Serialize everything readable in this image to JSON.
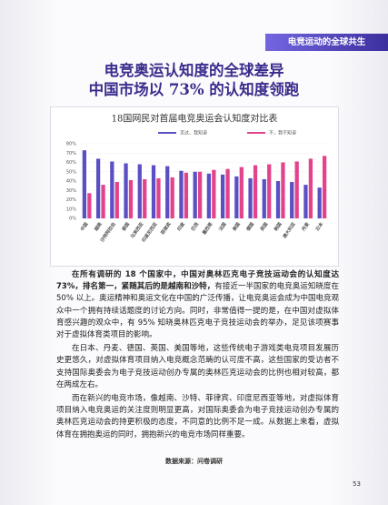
{
  "header_tab": "电竞运动的全球共生",
  "title": [
    "电竞奥运认知度的全球差异",
    "中国市场以 73% 的认知度领跑"
  ],
  "chart_data": {
    "type": "bar",
    "title": "18国网民对首届电竞奥运会认知度对比表",
    "categories": [
      "中国",
      "越南",
      "沙特阿拉伯",
      "泰国",
      "马来西亚",
      "印度尼西亚",
      "菲律宾",
      "印度",
      "巴西",
      "墨西哥",
      "法国",
      "美国",
      "德国",
      "英国",
      "韩国",
      "澳大利亚",
      "丹麦",
      "日本"
    ],
    "series": [
      {
        "name": "见过、我知道",
        "color": "#5b4fc4",
        "values": [
          73,
          64,
          61,
          59,
          58,
          57,
          56,
          51,
          50,
          48,
          47,
          45,
          43,
          42,
          40,
          39,
          36,
          33
        ]
      },
      {
        "name": "不，我不知道",
        "color": "#e2438b",
        "values": [
          27,
          36,
          39,
          41,
          42,
          43,
          44,
          49,
          50,
          52,
          53,
          55,
          57,
          58,
          60,
          61,
          64,
          67
        ]
      }
    ],
    "ylim": [
      0,
      80
    ],
    "yticks": [
      {
        "value": 0,
        "label": "0%"
      },
      {
        "value": 10,
        "label": "10%"
      },
      {
        "value": 20,
        "label": "20%"
      },
      {
        "value": 30,
        "label": "30%"
      },
      {
        "value": 40,
        "label": "40%"
      },
      {
        "value": 50,
        "label": "50%"
      },
      {
        "value": 60,
        "label": "60%"
      },
      {
        "value": 70,
        "label": "70%"
      },
      {
        "value": 80,
        "label": "80%"
      }
    ],
    "grid": true,
    "legend": "top"
  },
  "paragraphs": [
    [
      "在所有调研的 18 个国家中，中国对奥林匹克电子竞技运动会的认知度达 73%，排名第一，紧随其后的是越南和沙特，",
      "有接近一半国家的电竞奥运知晓度在 50% 以上。奥运精神和奥运文化在中国的广泛传播，让电竞奥运会成为中国电竞观众中一个拥有持续话题度的讨论方向。同时，非常值得一提的是，在中国对虚拟体育感兴趣的观众中，有 95% 知晓奥林匹克电子竞技运动会的举办，足见该项赛事对于虚拟体育类项目的影响。"
    ],
    [
      "在日本、丹麦、德国、英国、美国等地，这些传统电子游戏类电竞项目发展历史更悠久，对虚拟体育项目纳入电竞概念范畴的认可度不高，这些国家的受访者不支持国际奥委会为电子竞技运动创办专属的奥林匹克运动会的比例也相对较高，都在两成左右。"
    ],
    [
      "而在新兴的电竞市场，像越南、沙特、菲律宾、印度尼西亚等地，对虚拟体育项目纳入电竞奥运的关注度则明显更高，对国际奥委会为电子竞技运动创办专属的奥林匹克运动会的持更积极的态度，不同意的比例不足一成。从数据上来看，虚拟体育在拥抱奥运的同时，拥抱新兴的电竞市场同样重要。"
    ]
  ],
  "source": "数据来源：问卷调研",
  "page_number": "53"
}
